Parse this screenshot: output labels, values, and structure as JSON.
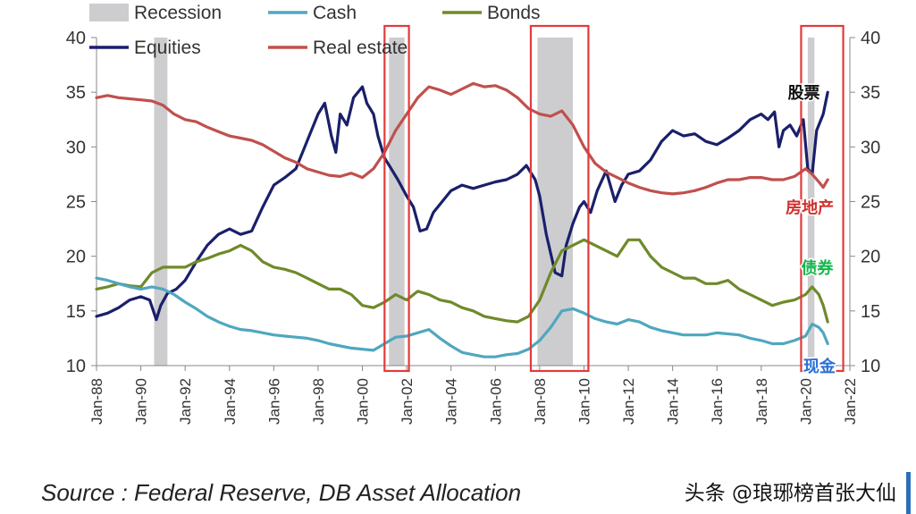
{
  "chart_data": {
    "type": "line",
    "ylim": [
      10,
      40
    ],
    "yticks": [
      10,
      15,
      20,
      25,
      30,
      35,
      40
    ],
    "xrange": [
      1988.0,
      2022.0
    ],
    "xticks": [
      {
        "x": 1988,
        "label": "Jan-88"
      },
      {
        "x": 1990,
        "label": "Jan-90"
      },
      {
        "x": 1992,
        "label": "Jan-92"
      },
      {
        "x": 1994,
        "label": "Jan-94"
      },
      {
        "x": 1996,
        "label": "Jan-96"
      },
      {
        "x": 1998,
        "label": "Jan-98"
      },
      {
        "x": 2000,
        "label": "Jan-00"
      },
      {
        "x": 2002,
        "label": "Jan-02"
      },
      {
        "x": 2004,
        "label": "Jan-04"
      },
      {
        "x": 2006,
        "label": "Jan-06"
      },
      {
        "x": 2008,
        "label": "Jan-08"
      },
      {
        "x": 2010,
        "label": "Jan-10"
      },
      {
        "x": 2012,
        "label": "Jan-12"
      },
      {
        "x": 2014,
        "label": "Jan-14"
      },
      {
        "x": 2016,
        "label": "Jan-16"
      },
      {
        "x": 2018,
        "label": "Jan-18"
      },
      {
        "x": 2020,
        "label": "Jan-20"
      },
      {
        "x": 2022,
        "label": "Jan-22"
      }
    ],
    "legend": [
      "Recession",
      "Cash",
      "Bonds",
      "Equities",
      "Real estate"
    ],
    "recessions": [
      [
        1990.6,
        1991.2
      ],
      [
        2001.2,
        2001.9
      ],
      [
        2007.9,
        2009.5
      ],
      [
        2020.1,
        2020.4
      ]
    ],
    "series": [
      {
        "name": "Equities",
        "color": "#1a1f6b",
        "x": [
          1988.0,
          1988.5,
          1989.0,
          1989.5,
          1990.0,
          1990.4,
          1990.7,
          1990.9,
          1991.2,
          1991.6,
          1992.0,
          1992.5,
          1993.0,
          1993.5,
          1994.0,
          1994.5,
          1995.0,
          1995.5,
          1996.0,
          1996.5,
          1997.0,
          1997.5,
          1998.0,
          1998.3,
          1998.6,
          1998.8,
          1999.0,
          1999.3,
          1999.6,
          2000.0,
          2000.2,
          2000.5,
          2000.7,
          2001.0,
          2001.3,
          2001.6,
          2002.0,
          2002.3,
          2002.6,
          2002.9,
          2003.2,
          2003.6,
          2004.0,
          2004.5,
          2005.0,
          2005.5,
          2006.0,
          2006.5,
          2007.0,
          2007.4,
          2007.8,
          2008.0,
          2008.3,
          2008.7,
          2009.0,
          2009.2,
          2009.5,
          2009.8,
          2010.0,
          2010.3,
          2010.6,
          2011.0,
          2011.4,
          2011.7,
          2012.0,
          2012.5,
          2013.0,
          2013.5,
          2014.0,
          2014.5,
          2015.0,
          2015.5,
          2016.0,
          2016.5,
          2017.0,
          2017.5,
          2018.0,
          2018.3,
          2018.6,
          2018.8,
          2019.0,
          2019.3,
          2019.6,
          2019.9,
          2020.1,
          2020.3,
          2020.5,
          2020.8,
          2021.0
        ],
        "values": [
          14.5,
          14.8,
          15.3,
          16.0,
          16.3,
          16.0,
          14.2,
          15.5,
          16.6,
          17.0,
          17.8,
          19.5,
          21.0,
          22.0,
          22.5,
          22.0,
          22.3,
          24.5,
          26.5,
          27.2,
          28.0,
          30.5,
          33.0,
          34.0,
          31.0,
          29.5,
          33.0,
          32.0,
          34.5,
          35.5,
          34.0,
          33.0,
          31.0,
          29.0,
          28.0,
          27.0,
          25.5,
          24.5,
          22.3,
          22.5,
          24.0,
          25.0,
          26.0,
          26.5,
          26.2,
          26.5,
          26.8,
          27.0,
          27.5,
          28.3,
          27.0,
          25.5,
          22.0,
          18.5,
          18.2,
          21.0,
          23.0,
          24.5,
          25.0,
          24.0,
          26.0,
          27.8,
          25.0,
          26.5,
          27.5,
          27.8,
          28.8,
          30.5,
          31.5,
          31.0,
          31.2,
          30.5,
          30.2,
          30.8,
          31.5,
          32.5,
          33.0,
          32.5,
          33.2,
          30.0,
          31.5,
          32.0,
          31.0,
          32.5,
          28.0,
          27.5,
          31.5,
          33.0,
          35.0
        ]
      },
      {
        "name": "Real estate",
        "color": "#c0504d",
        "x": [
          1988.0,
          1988.5,
          1989.0,
          1989.5,
          1990.0,
          1990.5,
          1991.0,
          1991.5,
          1992.0,
          1992.5,
          1993.0,
          1993.5,
          1994.0,
          1994.5,
          1995.0,
          1995.5,
          1996.0,
          1996.5,
          1997.0,
          1997.5,
          1998.0,
          1998.5,
          1999.0,
          1999.5,
          2000.0,
          2000.5,
          2001.0,
          2001.5,
          2002.0,
          2002.5,
          2003.0,
          2003.5,
          2004.0,
          2004.5,
          2005.0,
          2005.5,
          2006.0,
          2006.5,
          2007.0,
          2007.5,
          2008.0,
          2008.5,
          2009.0,
          2009.5,
          2010.0,
          2010.5,
          2011.0,
          2011.5,
          2012.0,
          2012.5,
          2013.0,
          2013.5,
          2014.0,
          2014.5,
          2015.0,
          2015.5,
          2016.0,
          2016.5,
          2017.0,
          2017.5,
          2018.0,
          2018.5,
          2019.0,
          2019.5,
          2020.0,
          2020.3,
          2020.6,
          2020.8,
          2021.0
        ],
        "values": [
          34.5,
          34.7,
          34.5,
          34.4,
          34.3,
          34.2,
          33.8,
          33.0,
          32.5,
          32.3,
          31.8,
          31.4,
          31.0,
          30.8,
          30.6,
          30.2,
          29.6,
          29.0,
          28.6,
          28.0,
          27.7,
          27.4,
          27.3,
          27.6,
          27.2,
          28.0,
          29.5,
          31.5,
          33.0,
          34.5,
          35.5,
          35.2,
          34.8,
          35.3,
          35.8,
          35.5,
          35.6,
          35.2,
          34.5,
          33.5,
          33.0,
          32.8,
          33.3,
          32.0,
          30.0,
          28.5,
          27.7,
          27.2,
          26.7,
          26.3,
          26.0,
          25.8,
          25.7,
          25.8,
          26.0,
          26.3,
          26.7,
          27.0,
          27.0,
          27.2,
          27.2,
          27.0,
          27.0,
          27.3,
          28.0,
          27.5,
          26.8,
          26.3,
          27.0
        ]
      },
      {
        "name": "Bonds",
        "color": "#6f8a2a",
        "x": [
          1988.0,
          1988.5,
          1989.0,
          1989.5,
          1990.0,
          1990.5,
          1991.0,
          1991.5,
          1992.0,
          1992.5,
          1993.0,
          1993.5,
          1994.0,
          1994.5,
          1995.0,
          1995.5,
          1996.0,
          1996.5,
          1997.0,
          1997.5,
          1998.0,
          1998.5,
          1999.0,
          1999.5,
          2000.0,
          2000.5,
          2001.0,
          2001.5,
          2002.0,
          2002.5,
          2003.0,
          2003.5,
          2004.0,
          2004.5,
          2005.0,
          2005.5,
          2006.0,
          2006.5,
          2007.0,
          2007.5,
          2008.0,
          2008.5,
          2009.0,
          2009.5,
          2010.0,
          2010.5,
          2011.0,
          2011.5,
          2012.0,
          2012.5,
          2013.0,
          2013.5,
          2014.0,
          2014.5,
          2015.0,
          2015.5,
          2016.0,
          2016.5,
          2017.0,
          2017.5,
          2018.0,
          2018.5,
          2019.0,
          2019.5,
          2020.0,
          2020.3,
          2020.6,
          2020.8,
          2021.0
        ],
        "values": [
          17.0,
          17.2,
          17.5,
          17.3,
          17.2,
          18.5,
          19.0,
          19.0,
          19.0,
          19.5,
          19.8,
          20.2,
          20.5,
          21.0,
          20.5,
          19.5,
          19.0,
          18.8,
          18.5,
          18.0,
          17.5,
          17.0,
          17.0,
          16.5,
          15.5,
          15.3,
          15.8,
          16.5,
          16.0,
          16.8,
          16.5,
          16.0,
          15.8,
          15.3,
          15.0,
          14.5,
          14.3,
          14.1,
          14.0,
          14.5,
          16.0,
          18.5,
          20.5,
          21.0,
          21.5,
          21.0,
          20.5,
          20.0,
          21.5,
          21.5,
          20.0,
          19.0,
          18.5,
          18.0,
          18.0,
          17.5,
          17.5,
          17.8,
          17.0,
          16.5,
          16.0,
          15.5,
          15.8,
          16.0,
          16.5,
          17.2,
          16.5,
          15.5,
          14.0
        ]
      },
      {
        "name": "Cash",
        "color": "#4fa7bf",
        "x": [
          1988.0,
          1988.5,
          1989.0,
          1989.5,
          1990.0,
          1990.5,
          1991.0,
          1991.5,
          1992.0,
          1992.5,
          1993.0,
          1993.5,
          1994.0,
          1994.5,
          1995.0,
          1995.5,
          1996.0,
          1996.5,
          1997.0,
          1997.5,
          1998.0,
          1998.5,
          1999.0,
          1999.5,
          2000.0,
          2000.5,
          2001.0,
          2001.5,
          2002.0,
          2002.5,
          2003.0,
          2003.5,
          2004.0,
          2004.5,
          2005.0,
          2005.5,
          2006.0,
          2006.5,
          2007.0,
          2007.5,
          2008.0,
          2008.5,
          2009.0,
          2009.5,
          2010.0,
          2010.5,
          2011.0,
          2011.5,
          2012.0,
          2012.5,
          2013.0,
          2013.5,
          2014.0,
          2014.5,
          2015.0,
          2015.5,
          2016.0,
          2016.5,
          2017.0,
          2017.5,
          2018.0,
          2018.5,
          2019.0,
          2019.5,
          2020.0,
          2020.3,
          2020.6,
          2020.8,
          2021.0
        ],
        "values": [
          18.0,
          17.8,
          17.5,
          17.2,
          17.0,
          17.2,
          17.0,
          16.5,
          15.8,
          15.2,
          14.5,
          14.0,
          13.6,
          13.3,
          13.2,
          13.0,
          12.8,
          12.7,
          12.6,
          12.5,
          12.3,
          12.0,
          11.8,
          11.6,
          11.5,
          11.4,
          12.0,
          12.6,
          12.7,
          13.0,
          13.3,
          12.5,
          11.8,
          11.2,
          11.0,
          10.8,
          10.8,
          11.0,
          11.1,
          11.5,
          12.3,
          13.5,
          15.0,
          15.2,
          14.8,
          14.3,
          14.0,
          13.8,
          14.2,
          14.0,
          13.5,
          13.2,
          13.0,
          12.8,
          12.8,
          12.8,
          13.0,
          12.9,
          12.8,
          12.5,
          12.3,
          12.0,
          12.0,
          12.3,
          12.7,
          13.8,
          13.5,
          13.0,
          12.0
        ]
      }
    ],
    "annotations": [
      {
        "text": "股票",
        "color": "#111111",
        "x": 2019.2,
        "y": 35.0
      },
      {
        "text": "房地产",
        "color": "#d0312d",
        "x": 2019.1,
        "y": 24.5
      },
      {
        "text": "债券",
        "color": "#12b64a",
        "x": 2019.8,
        "y": 19.0
      },
      {
        "text": "现金",
        "color": "#2a6fd6",
        "x": 2019.9,
        "y": 10.0
      }
    ],
    "highlight_boxes": [
      [
        2001.0,
        2002.1
      ],
      [
        2007.6,
        2010.2
      ],
      [
        2019.8,
        2021.7
      ]
    ]
  },
  "source_text": "Source : Federal Reserve, DB Asset Allocation",
  "watermark_text": "头条 @琅琊榜首张大仙"
}
